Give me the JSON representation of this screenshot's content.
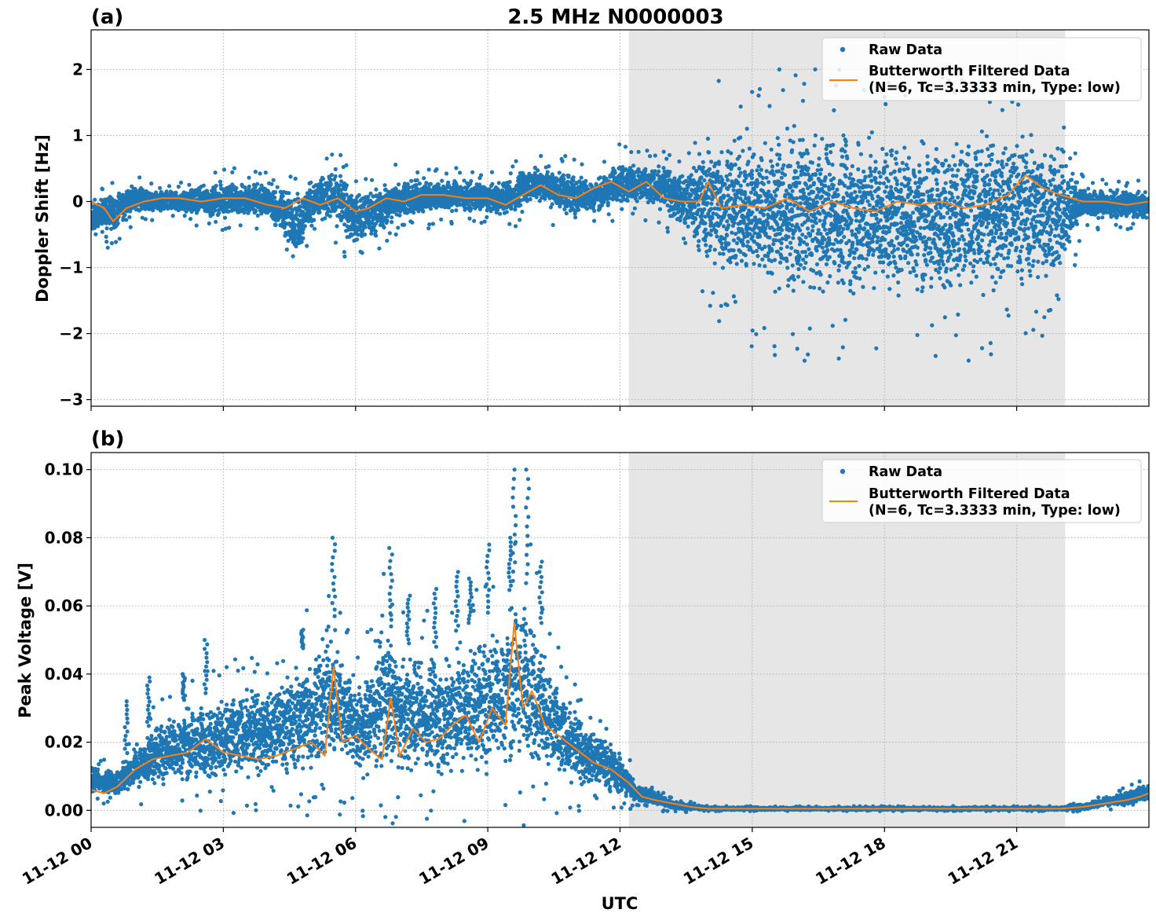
{
  "title": "2.5 MHz N0000003",
  "x_axis": {
    "label": "UTC",
    "tick_labels": [
      "11-12 00",
      "11-12 03",
      "11-12 06",
      "11-12 09",
      "11-12 12",
      "11-12 15",
      "11-12 18",
      "11-12 21"
    ]
  },
  "legend": {
    "raw": "Raw Data",
    "filtered_line1": "Butterworth Filtered Data",
    "filtered_line2": "(N=6, Tc=3.3333 min, Type: low)"
  },
  "colors": {
    "raw": "#1f77b4",
    "filtered": "#ff7f0e",
    "shade": "#e6e6e6",
    "grid": "#b0b0b0"
  },
  "chart_data": [
    {
      "type": "scatter",
      "panel": "(a)",
      "title": "2.5 MHz N0000003",
      "xlabel": "UTC",
      "ylabel": "Doppler Shift [Hz]",
      "x_unit": "hours since 11-12 00 UTC",
      "xlim": [
        0,
        24
      ],
      "ylim": [
        -3.1,
        2.6
      ],
      "yticks": [
        2,
        1,
        0,
        -1,
        -2,
        -3
      ],
      "ytick_labels": [
        "2",
        "1",
        "0",
        "−1",
        "−2",
        "−3"
      ],
      "shaded_region_hours": [
        12.2,
        22.1
      ],
      "grid": true,
      "legend_position": "top-right",
      "series": [
        {
          "name": "Raw Data",
          "style": "points",
          "x": [
            0,
            0.5,
            1,
            1.5,
            2,
            3,
            4,
            4.7,
            5,
            5.5,
            6,
            6.5,
            7,
            7.5,
            8,
            8.5,
            9,
            9.5,
            10,
            10.5,
            11,
            11.5,
            12,
            12.5,
            13,
            13.5,
            14,
            15,
            16,
            17,
            18,
            19,
            20,
            21,
            22,
            22.5,
            23,
            24
          ],
          "y_low": [
            -0.6,
            -0.5,
            -0.2,
            -0.2,
            -0.2,
            -0.3,
            -0.3,
            -0.9,
            -0.4,
            -0.4,
            -0.8,
            -0.6,
            -0.3,
            -0.3,
            -0.2,
            -0.2,
            -0.2,
            -0.3,
            0.0,
            -0.2,
            -0.3,
            -0.2,
            -0.1,
            -0.1,
            -0.2,
            -0.6,
            -1.2,
            -1.6,
            -1.7,
            -1.7,
            -1.6,
            -1.7,
            -1.7,
            -1.6,
            -1.4,
            -0.3,
            -0.3,
            -0.3
          ],
          "y_high": [
            0.1,
            0.2,
            0.3,
            0.2,
            0.2,
            0.35,
            0.35,
            0.2,
            0.4,
            0.6,
            0.3,
            0.3,
            0.4,
            0.4,
            0.4,
            0.35,
            0.3,
            0.4,
            0.6,
            0.6,
            0.5,
            0.4,
            0.7,
            0.6,
            0.6,
            0.6,
            1.2,
            1.3,
            1.3,
            1.3,
            1.3,
            1.2,
            1.3,
            1.4,
            1.1,
            0.3,
            0.2,
            0.2
          ]
        },
        {
          "name": "Butterworth Filtered Data\n(N=6, Tc=3.3333 min, Type: low)",
          "style": "line",
          "x": [
            0,
            0.3,
            0.5,
            0.8,
            1.2,
            1.6,
            2,
            2.5,
            3,
            3.5,
            4,
            4.4,
            4.8,
            5.2,
            5.6,
            6,
            6.3,
            6.7,
            7.1,
            7.5,
            8,
            8.5,
            9,
            9.4,
            9.8,
            10.2,
            10.6,
            11,
            11.4,
            11.8,
            12.2,
            12.6,
            13,
            13.4,
            13.8,
            14,
            14.3,
            14.8,
            15.3,
            15.8,
            16.3,
            16.8,
            17.3,
            17.8,
            18.3,
            18.8,
            19.3,
            19.8,
            20.3,
            20.8,
            21.2,
            21.6,
            22,
            22.5,
            23,
            23.5,
            24
          ],
          "y": [
            0.0,
            -0.1,
            -0.3,
            -0.1,
            0.0,
            0.05,
            0.05,
            0.0,
            0.05,
            0.05,
            -0.05,
            -0.1,
            0.05,
            -0.05,
            0.05,
            -0.15,
            -0.1,
            0.05,
            0.0,
            0.1,
            0.1,
            0.05,
            0.05,
            -0.05,
            0.1,
            0.25,
            0.1,
            0.05,
            0.2,
            0.3,
            0.15,
            0.3,
            0.05,
            0.0,
            0.0,
            0.3,
            -0.1,
            -0.05,
            -0.1,
            0.05,
            -0.15,
            0.0,
            -0.1,
            -0.15,
            0.0,
            -0.05,
            0.0,
            -0.1,
            -0.05,
            0.1,
            0.4,
            0.2,
            0.1,
            0.0,
            0.0,
            -0.05,
            0.0
          ]
        }
      ]
    },
    {
      "type": "scatter",
      "panel": "(b)",
      "xlabel": "UTC",
      "ylabel": "Peak Voltage [V]",
      "x_unit": "hours since 11-12 00 UTC",
      "xlim": [
        0,
        24
      ],
      "ylim": [
        -0.005,
        0.105
      ],
      "yticks": [
        0.1,
        0.08,
        0.06,
        0.04,
        0.02,
        0.0
      ],
      "ytick_labels": [
        "0.10",
        "0.08",
        "0.06",
        "0.04",
        "0.02",
        "0.00"
      ],
      "shaded_region_hours": [
        12.2,
        22.1
      ],
      "grid": true,
      "legend_position": "top-right",
      "series": [
        {
          "name": "Raw Data",
          "style": "points",
          "x": [
            0,
            0.5,
            1,
            1.5,
            2,
            2.5,
            3,
            3.5,
            4,
            4.5,
            5,
            5.4,
            5.8,
            6.2,
            6.6,
            7,
            7.4,
            7.8,
            8.2,
            8.6,
            9,
            9.4,
            9.7,
            10,
            10.4,
            10.8,
            11.2,
            11.6,
            12,
            12.4,
            12.8,
            13.2,
            14,
            16,
            18,
            20,
            22,
            22.5,
            23,
            23.5,
            24
          ],
          "y_low": [
            0.004,
            0.004,
            0.005,
            0.006,
            0.006,
            0.006,
            0.006,
            0.007,
            0.007,
            0.007,
            0.007,
            0.008,
            0.008,
            0.006,
            0.007,
            0.007,
            0.007,
            0.007,
            0.006,
            0.007,
            0.007,
            0.008,
            0.009,
            0.008,
            0.008,
            0.006,
            0.005,
            0.004,
            0.003,
            0.002,
            0.001,
            0.0,
            0.0,
            0.0,
            0.0,
            0.0,
            0.0,
            0.0,
            0.001,
            0.001,
            0.002
          ],
          "y_high": [
            0.014,
            0.012,
            0.02,
            0.028,
            0.032,
            0.034,
            0.036,
            0.038,
            0.04,
            0.044,
            0.05,
            0.06,
            0.048,
            0.04,
            0.06,
            0.048,
            0.05,
            0.048,
            0.052,
            0.055,
            0.058,
            0.062,
            0.07,
            0.065,
            0.045,
            0.035,
            0.028,
            0.025,
            0.018,
            0.008,
            0.006,
            0.003,
            0.001,
            0.001,
            0.001,
            0.001,
            0.001,
            0.002,
            0.004,
            0.006,
            0.009
          ],
          "peaks_x": [
            0.8,
            1.3,
            2.1,
            2.6,
            4.8,
            5.5,
            6.8,
            7.2,
            7.8,
            8.3,
            8.6,
            9.0,
            9.5,
            9.6,
            9.9,
            10.2
          ],
          "peaks_y": [
            0.032,
            0.039,
            0.04,
            0.05,
            0.053,
            0.08,
            0.077,
            0.063,
            0.065,
            0.07,
            0.068,
            0.078,
            0.08,
            0.1,
            0.1,
            0.073
          ]
        },
        {
          "name": "Butterworth Filtered Data\n(N=6, Tc=3.3333 min, Type: low)",
          "style": "line",
          "x": [
            0,
            0.3,
            0.6,
            1.0,
            1.4,
            1.8,
            2.2,
            2.6,
            3.0,
            3.4,
            3.8,
            4.2,
            4.6,
            5.0,
            5.3,
            5.5,
            5.7,
            6.0,
            6.3,
            6.6,
            6.8,
            7.0,
            7.3,
            7.6,
            7.9,
            8.2,
            8.5,
            8.8,
            9.1,
            9.4,
            9.6,
            9.8,
            10.0,
            10.3,
            10.6,
            11.0,
            11.4,
            11.8,
            12.2,
            12.5,
            12.8,
            13.2,
            13.6,
            14.0,
            16,
            18,
            20,
            22,
            22.5,
            23,
            23.5,
            23.8,
            24
          ],
          "y": [
            0.006,
            0.005,
            0.007,
            0.012,
            0.015,
            0.016,
            0.017,
            0.021,
            0.017,
            0.016,
            0.015,
            0.016,
            0.018,
            0.02,
            0.016,
            0.042,
            0.02,
            0.022,
            0.018,
            0.015,
            0.033,
            0.016,
            0.024,
            0.02,
            0.021,
            0.025,
            0.028,
            0.02,
            0.03,
            0.025,
            0.055,
            0.03,
            0.035,
            0.025,
            0.022,
            0.018,
            0.014,
            0.012,
            0.008,
            0.004,
            0.003,
            0.002,
            0.001,
            0.0005,
            0.0005,
            0.0005,
            0.0005,
            0.0005,
            0.001,
            0.002,
            0.003,
            0.004,
            0.005
          ]
        }
      ]
    }
  ]
}
